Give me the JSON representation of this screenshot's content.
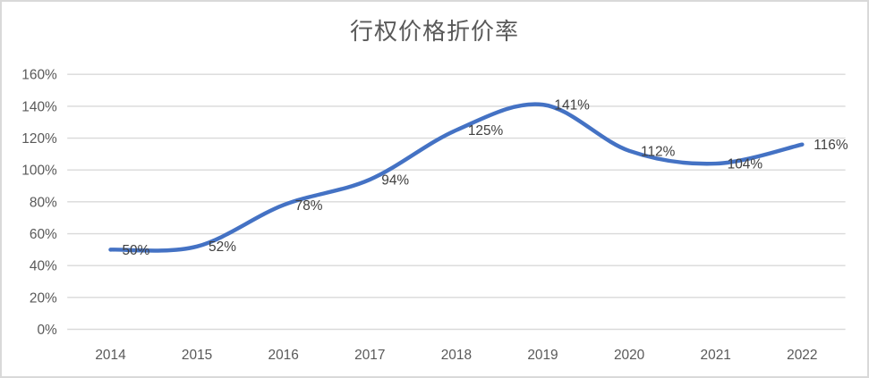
{
  "chart_data": {
    "type": "line",
    "title": "行权价格折价率",
    "categories": [
      "2014",
      "2015",
      "2016",
      "2017",
      "2018",
      "2019",
      "2020",
      "2021",
      "2022"
    ],
    "series": [
      {
        "name": "行权价格折价率",
        "values": [
          50,
          52,
          78,
          94,
          125,
          141,
          112,
          104,
          116
        ],
        "labels": [
          "50%",
          "52%",
          "78%",
          "94%",
          "125%",
          "141%",
          "112%",
          "104%",
          "116%"
        ],
        "color": "#4472C4"
      }
    ],
    "xlabel": "",
    "ylabel": "",
    "ylim": [
      0,
      160
    ],
    "y_tick_step": 20,
    "y_tick_labels": [
      "0%",
      "20%",
      "40%",
      "60%",
      "80%",
      "100%",
      "120%",
      "140%",
      "160%"
    ],
    "grid": "horizontal",
    "smooth": true,
    "legend": "none",
    "data_label_position": "right"
  },
  "colors": {
    "series_line": "#4472C4",
    "gridline": "#d9d9d9",
    "axis_text": "#595959",
    "data_label_text": "#404040",
    "title_text": "#595959",
    "chart_border": "#d9d9d9",
    "background": "#ffffff"
  }
}
